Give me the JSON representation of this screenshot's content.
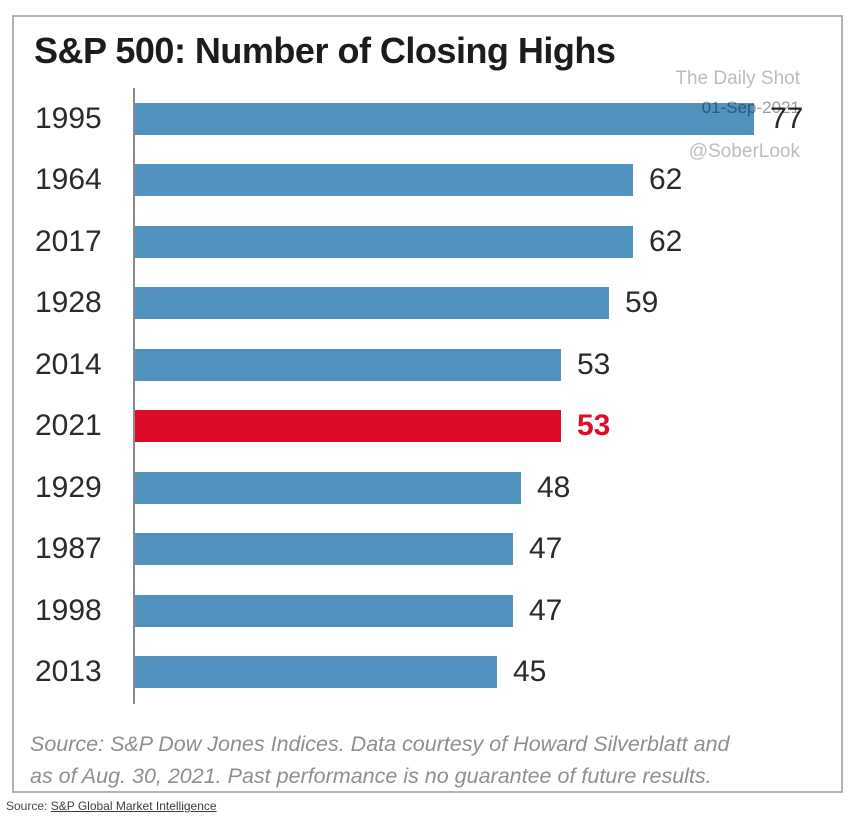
{
  "page": {
    "source_prefix": "Source:",
    "source_link": "S&P Global Market Intelligence"
  },
  "chart": {
    "title": "S&P 500: Number of Closing Highs",
    "watermark": {
      "line1": "The Daily Shot",
      "line2": "01-Sep-2021",
      "line3": "@SoberLook"
    },
    "footnote_lines": [
      "Source: S&P Dow Jones Indices. Data courtesy of Howard Silverblatt and",
      "as of Aug. 30, 2021.  Past performance is no guarantee of future results."
    ]
  },
  "chart_data": {
    "type": "bar",
    "orientation": "horizontal",
    "title": "S&P 500: Number of Closing Highs",
    "categories": [
      "1995",
      "1964",
      "2017",
      "1928",
      "2014",
      "2021",
      "1929",
      "1987",
      "1998",
      "2013"
    ],
    "values": [
      77,
      62,
      62,
      59,
      53,
      53,
      48,
      47,
      47,
      45
    ],
    "highlight_index": 5,
    "highlight_category": "2021",
    "bar_color": "#4f92bd",
    "highlight_color": "#dd0b27",
    "axis_color": "#8a8a8a",
    "xlim": [
      0,
      77
    ],
    "value_labels": true,
    "grid": false,
    "legend": "none"
  }
}
